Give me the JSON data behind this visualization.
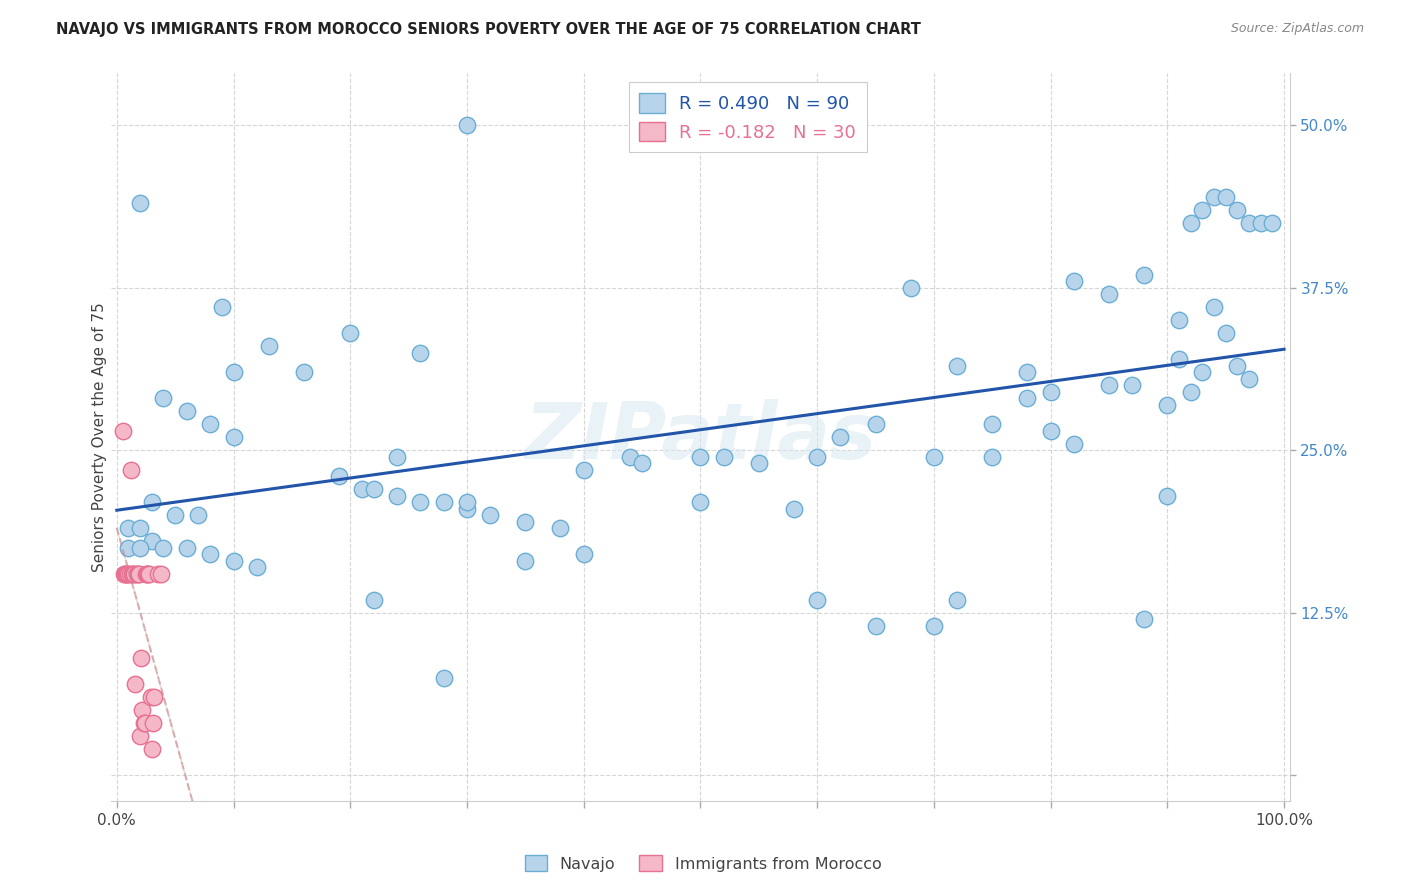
{
  "title": "NAVAJO VS IMMIGRANTS FROM MOROCCO SENIORS POVERTY OVER THE AGE OF 75 CORRELATION CHART",
  "source": "Source: ZipAtlas.com",
  "ylabel": "Seniors Poverty Over the Age of 75",
  "navajo_color": "#b8d4ea",
  "navajo_edge_color": "#6aaed6",
  "morocco_color": "#f4b8c8",
  "morocco_edge_color": "#e87090",
  "navajo_line_color": "#2255aa",
  "morocco_line_color": "#cc8888",
  "morocco_dash_color": "#ccbbbb",
  "watermark": "ZIPatlas",
  "legend_navajo_r": "R = 0.490",
  "legend_navajo_n": "N = 90",
  "legend_morocco_r": "R = -0.182",
  "legend_morocco_n": "N = 30",
  "ytick_color": "#4488cc",
  "navajo_scatter_x": [
    0.3,
    0.02,
    0.09,
    0.13,
    0.1,
    0.16,
    0.19,
    0.21,
    0.04,
    0.06,
    0.08,
    0.1,
    0.03,
    0.05,
    0.07,
    0.01,
    0.02,
    0.03,
    0.01,
    0.02,
    0.04,
    0.06,
    0.08,
    0.1,
    0.12,
    0.22,
    0.24,
    0.26,
    0.28,
    0.3,
    0.32,
    0.35,
    0.38,
    0.4,
    0.44,
    0.5,
    0.52,
    0.58,
    0.6,
    0.62,
    0.65,
    0.68,
    0.7,
    0.72,
    0.75,
    0.78,
    0.8,
    0.82,
    0.85,
    0.87,
    0.88,
    0.9,
    0.91,
    0.92,
    0.93,
    0.94,
    0.95,
    0.96,
    0.97,
    0.98,
    0.99,
    0.97,
    0.96,
    0.95,
    0.94,
    0.93,
    0.92,
    0.91,
    0.9,
    0.88,
    0.85,
    0.82,
    0.8,
    0.78,
    0.75,
    0.72,
    0.7,
    0.65,
    0.6,
    0.55,
    0.5,
    0.45,
    0.4,
    0.35,
    0.3,
    0.28,
    0.26,
    0.24,
    0.22,
    0.2
  ],
  "navajo_scatter_y": [
    0.5,
    0.44,
    0.36,
    0.33,
    0.31,
    0.31,
    0.23,
    0.22,
    0.29,
    0.28,
    0.27,
    0.26,
    0.21,
    0.2,
    0.2,
    0.19,
    0.19,
    0.18,
    0.175,
    0.175,
    0.175,
    0.175,
    0.17,
    0.165,
    0.16,
    0.22,
    0.215,
    0.21,
    0.21,
    0.205,
    0.2,
    0.195,
    0.19,
    0.235,
    0.245,
    0.21,
    0.245,
    0.205,
    0.245,
    0.26,
    0.27,
    0.375,
    0.245,
    0.315,
    0.27,
    0.31,
    0.265,
    0.255,
    0.3,
    0.3,
    0.12,
    0.215,
    0.32,
    0.425,
    0.435,
    0.445,
    0.445,
    0.435,
    0.425,
    0.425,
    0.425,
    0.305,
    0.315,
    0.34,
    0.36,
    0.31,
    0.295,
    0.35,
    0.285,
    0.385,
    0.37,
    0.38,
    0.295,
    0.29,
    0.245,
    0.135,
    0.115,
    0.115,
    0.135,
    0.24,
    0.245,
    0.24,
    0.17,
    0.165,
    0.21,
    0.075,
    0.325,
    0.245,
    0.135,
    0.34
  ],
  "morocco_scatter_x": [
    0.005,
    0.006,
    0.007,
    0.008,
    0.009,
    0.01,
    0.011,
    0.012,
    0.013,
    0.014,
    0.015,
    0.016,
    0.017,
    0.018,
    0.019,
    0.02,
    0.021,
    0.022,
    0.023,
    0.024,
    0.025,
    0.026,
    0.027,
    0.028,
    0.029,
    0.03,
    0.031,
    0.032,
    0.035,
    0.038
  ],
  "morocco_scatter_y": [
    0.265,
    0.155,
    0.155,
    0.155,
    0.155,
    0.155,
    0.155,
    0.235,
    0.155,
    0.155,
    0.155,
    0.07,
    0.155,
    0.155,
    0.155,
    0.03,
    0.09,
    0.05,
    0.04,
    0.04,
    0.155,
    0.155,
    0.155,
    0.155,
    0.06,
    0.02,
    0.04,
    0.06,
    0.155,
    0.155
  ]
}
